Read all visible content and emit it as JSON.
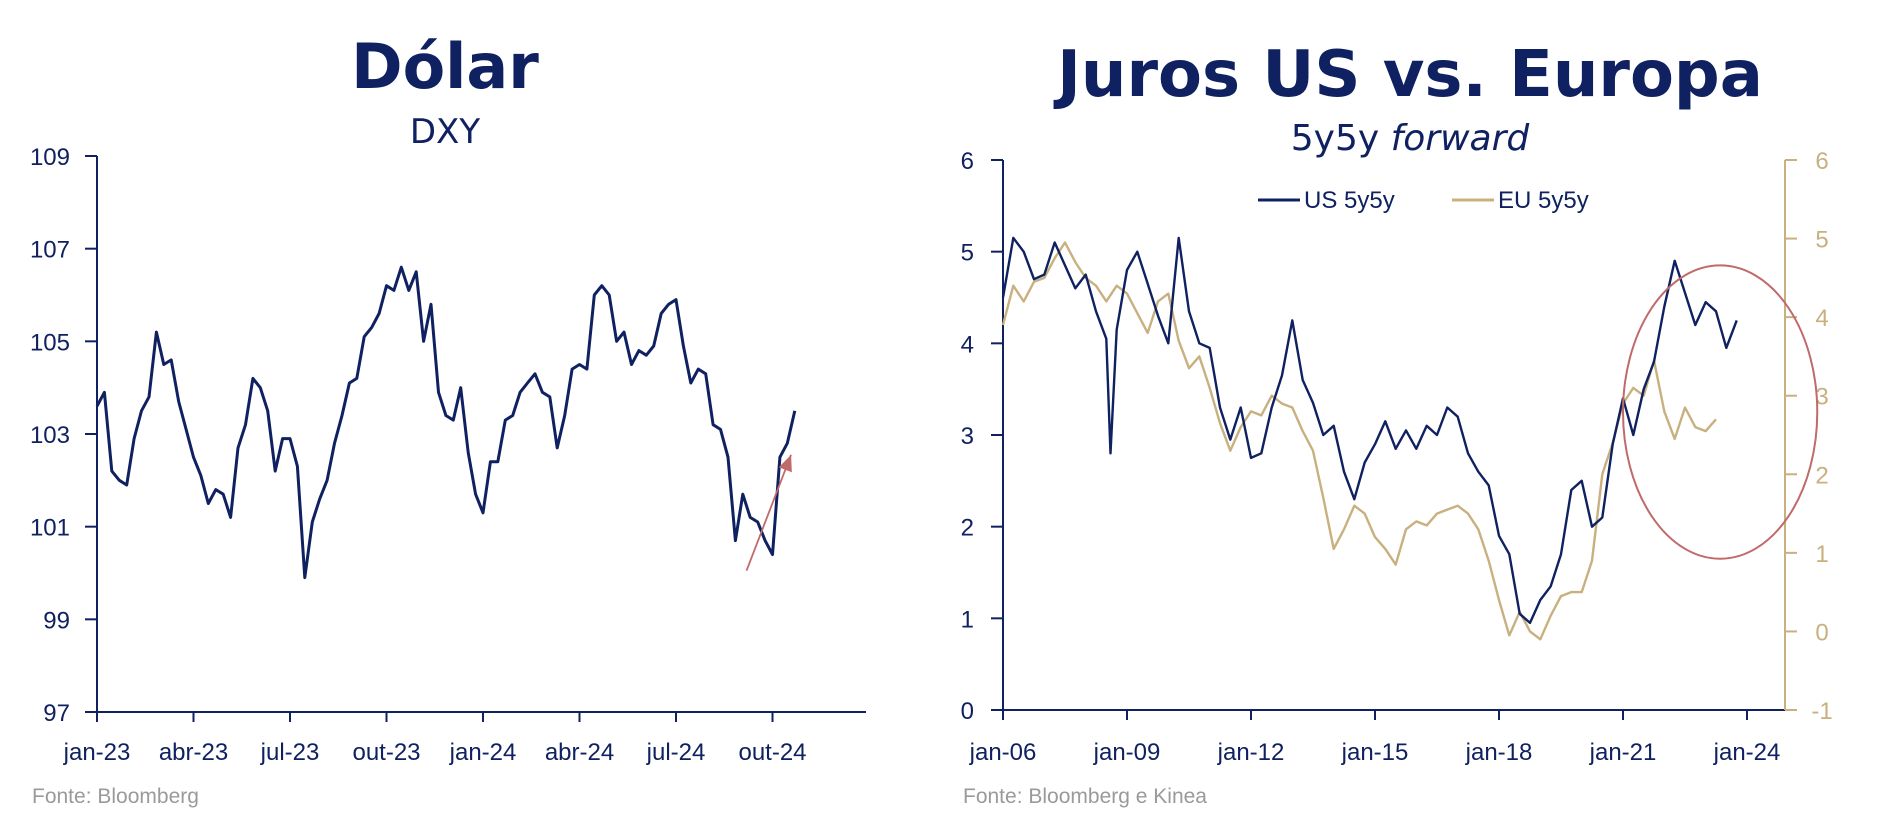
{
  "colors": {
    "navy": "#0f2160",
    "gold": "#c8b07f",
    "accent": "#c06a6a",
    "source": "#9a9a9a"
  },
  "chart_data": [
    {
      "type": "line",
      "title": "Dólar",
      "subtitle": "DXY",
      "source": "Fonte: Bloomberg",
      "ylim": [
        97,
        109
      ],
      "yticks": [
        97,
        99,
        101,
        103,
        105,
        107,
        109
      ],
      "xticks": [
        "jan-23",
        "abr-23",
        "jul-23",
        "out-23",
        "jan-24",
        "abr-24",
        "jul-24",
        "out-24"
      ],
      "xunit": "weeks since first tick",
      "grid": false,
      "series": [
        {
          "name": "DXY",
          "color": "#0f2160",
          "x": [
            0,
            1,
            2,
            3,
            4,
            5,
            6,
            7,
            8,
            9,
            10,
            11,
            12,
            13,
            14,
            15,
            16,
            17,
            18,
            19,
            20,
            21,
            22,
            23,
            24,
            25,
            26,
            27,
            28,
            29,
            30,
            31,
            32,
            33,
            34,
            35,
            36,
            37,
            38,
            39,
            40,
            41,
            42,
            43,
            44,
            45,
            46,
            47,
            48,
            49,
            50,
            51,
            52,
            53,
            54,
            55,
            56,
            57,
            58,
            59,
            60,
            61,
            62,
            63,
            64,
            65,
            66,
            67,
            68,
            69,
            70,
            71,
            72,
            73,
            74,
            75,
            76,
            77,
            78,
            79,
            80,
            81,
            82,
            83,
            84,
            85,
            86,
            87,
            88,
            89,
            90,
            91,
            92,
            93,
            94,
            95,
            96
          ],
          "y": [
            103.6,
            103.9,
            102.2,
            102.0,
            101.9,
            102.9,
            103.5,
            103.8,
            105.2,
            104.5,
            104.6,
            103.7,
            103.1,
            102.5,
            102.1,
            101.5,
            101.8,
            101.7,
            101.2,
            102.7,
            103.2,
            104.2,
            104.0,
            103.5,
            102.2,
            102.9,
            102.9,
            102.3,
            99.9,
            101.1,
            101.6,
            102.0,
            102.8,
            103.4,
            104.1,
            104.2,
            105.1,
            105.3,
            105.6,
            106.2,
            106.1,
            106.6,
            106.1,
            106.5,
            105.0,
            105.8,
            103.9,
            103.4,
            103.3,
            104.0,
            102.6,
            101.7,
            101.3,
            102.4,
            102.4,
            103.3,
            103.4,
            103.9,
            104.1,
            104.3,
            103.9,
            103.8,
            102.7,
            103.4,
            104.4,
            104.5,
            104.4,
            106.0,
            106.2,
            106.0,
            105.0,
            105.2,
            104.5,
            104.8,
            104.7,
            104.9,
            105.6,
            105.8,
            105.9,
            104.9,
            104.1,
            104.4,
            104.3,
            103.2,
            103.1,
            102.5,
            100.7,
            101.7,
            101.2,
            101.1,
            100.7,
            100.4,
            102.5,
            102.8,
            103.5,
            null,
            null
          ]
        }
      ],
      "annotation": {
        "type": "arrow",
        "color": "#c06a6a",
        "from": [
          87.5,
          100.05
        ],
        "to": [
          93.5,
          102.55
        ]
      }
    },
    {
      "type": "line",
      "title": "Juros US vs. Europa",
      "subtitle_regular": "5y5y ",
      "subtitle_italic": "forward",
      "source": "Fonte: Bloomberg e Kinea",
      "ylim_left": [
        0,
        6
      ],
      "yticks_left": [
        0,
        1,
        2,
        3,
        4,
        5,
        6
      ],
      "ylim_right": [
        -1,
        6
      ],
      "yticks_right": [
        -1,
        0,
        1,
        2,
        3,
        4,
        5,
        6
      ],
      "xticks": [
        "jan-06",
        "jan-09",
        "jan-12",
        "jan-15",
        "jan-18",
        "jan-21",
        "jan-24"
      ],
      "xunit": "years since jan-06",
      "legend_position": "top-center",
      "grid": false,
      "series": [
        {
          "name": "US 5y5y",
          "axis": "left",
          "color": "#0f2160",
          "x": [
            0,
            0.25,
            0.5,
            0.75,
            1,
            1.25,
            1.5,
            1.75,
            2,
            2.25,
            2.5,
            2.6,
            2.75,
            3,
            3.25,
            3.5,
            3.75,
            4,
            4.25,
            4.5,
            4.75,
            5,
            5.25,
            5.5,
            5.75,
            6,
            6.25,
            6.5,
            6.75,
            7,
            7.25,
            7.5,
            7.75,
            8,
            8.25,
            8.5,
            8.75,
            9,
            9.25,
            9.5,
            9.75,
            10,
            10.25,
            10.5,
            10.75,
            11,
            11.25,
            11.5,
            11.75,
            12,
            12.25,
            12.5,
            12.75,
            13,
            13.25,
            13.5,
            13.75,
            14,
            14.25,
            14.5,
            14.75,
            15,
            15.25,
            15.5,
            15.75,
            16,
            16.25,
            16.5,
            16.75,
            17,
            17.25,
            17.5,
            17.75,
            18,
            18.25,
            18.5,
            18.75
          ],
          "y": [
            4.5,
            5.15,
            5.0,
            4.7,
            4.75,
            5.1,
            4.85,
            4.6,
            4.75,
            4.35,
            4.05,
            2.8,
            4.15,
            4.8,
            5.0,
            4.65,
            4.3,
            4.0,
            5.15,
            4.35,
            4.0,
            3.95,
            3.3,
            2.95,
            3.3,
            2.75,
            2.8,
            3.3,
            3.65,
            4.25,
            3.6,
            3.35,
            3.0,
            3.1,
            2.6,
            2.3,
            2.7,
            2.9,
            3.15,
            2.85,
            3.05,
            2.85,
            3.1,
            3.0,
            3.3,
            3.2,
            2.8,
            2.6,
            2.45,
            1.9,
            1.7,
            1.05,
            0.95,
            1.2,
            1.35,
            1.7,
            2.4,
            2.5,
            2.0,
            2.1,
            2.9,
            3.4,
            3.0,
            3.5,
            3.8,
            4.4,
            4.9,
            4.55,
            4.2,
            4.45,
            4.35,
            3.95,
            4.25,
            null,
            null,
            null,
            null
          ]
        },
        {
          "name": "EU 5y5y",
          "axis": "right",
          "color": "#c8b07f",
          "x": [
            0,
            0.25,
            0.5,
            0.75,
            1,
            1.25,
            1.5,
            1.75,
            2,
            2.25,
            2.5,
            2.75,
            3,
            3.25,
            3.5,
            3.75,
            4,
            4.25,
            4.5,
            4.75,
            5,
            5.25,
            5.5,
            5.75,
            6,
            6.25,
            6.5,
            6.75,
            7,
            7.25,
            7.5,
            7.75,
            8,
            8.25,
            8.5,
            8.75,
            9,
            9.25,
            9.5,
            9.75,
            10,
            10.25,
            10.5,
            10.75,
            11,
            11.25,
            11.5,
            11.75,
            12,
            12.25,
            12.5,
            12.75,
            13,
            13.25,
            13.5,
            13.75,
            14,
            14.25,
            14.5,
            14.75,
            15,
            15.25,
            15.5,
            15.75,
            16,
            16.25,
            16.5,
            16.75,
            17,
            17.25,
            17.5,
            17.75,
            18
          ],
          "y": [
            3.9,
            4.4,
            4.2,
            4.45,
            4.5,
            4.75,
            4.95,
            4.7,
            4.5,
            4.4,
            4.2,
            4.4,
            4.3,
            4.05,
            3.8,
            4.2,
            4.3,
            3.7,
            3.35,
            3.5,
            3.1,
            2.65,
            2.3,
            2.6,
            2.8,
            2.75,
            3.0,
            2.9,
            2.85,
            2.55,
            2.3,
            1.7,
            1.05,
            1.3,
            1.6,
            1.5,
            1.2,
            1.05,
            0.85,
            1.3,
            1.4,
            1.35,
            1.5,
            1.55,
            1.6,
            1.5,
            1.3,
            0.9,
            0.4,
            -0.05,
            0.25,
            0.0,
            -0.1,
            0.2,
            0.45,
            0.5,
            0.5,
            0.9,
            2.0,
            2.4,
            2.9,
            3.1,
            3.0,
            3.45,
            2.8,
            2.45,
            2.85,
            2.6,
            2.55,
            2.7,
            null,
            null,
            null
          ]
        }
      ],
      "annotation": {
        "type": "ellipse",
        "color": "#c06a6a",
        "center": [
          17.35,
          3.25
        ],
        "rx_years": 2.35,
        "ry": 1.6
      }
    }
  ]
}
